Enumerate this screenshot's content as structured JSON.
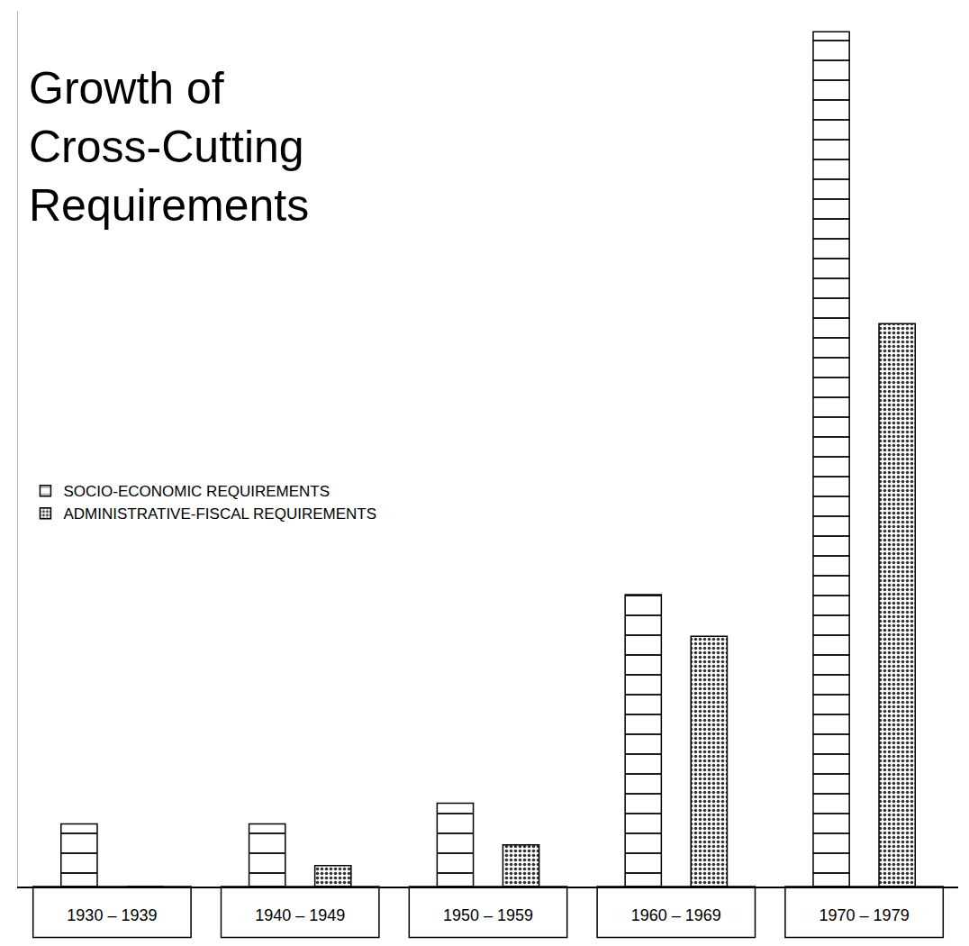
{
  "chart_data": {
    "type": "bar",
    "title": "Growth of Cross-Cutting Requirements",
    "categories": [
      "1930 – 1939",
      "1940 – 1949",
      "1950 – 1959",
      "1960 – 1969",
      "1970 – 1979"
    ],
    "series": [
      {
        "name": "SOCIO-ECONOMIC REQUIREMENTS",
        "color": "#ffffff",
        "values": [
          3,
          3,
          4,
          14,
          41
        ]
      },
      {
        "name": "ADMINISTRATIVE-FISCAL REQUIREMENTS",
        "color": "#7a7a7a",
        "values": [
          0,
          1,
          2,
          12,
          27
        ]
      }
    ],
    "ylim": [
      0,
      42
    ],
    "tick_labels": "x",
    "grid": false,
    "legend": "left"
  }
}
